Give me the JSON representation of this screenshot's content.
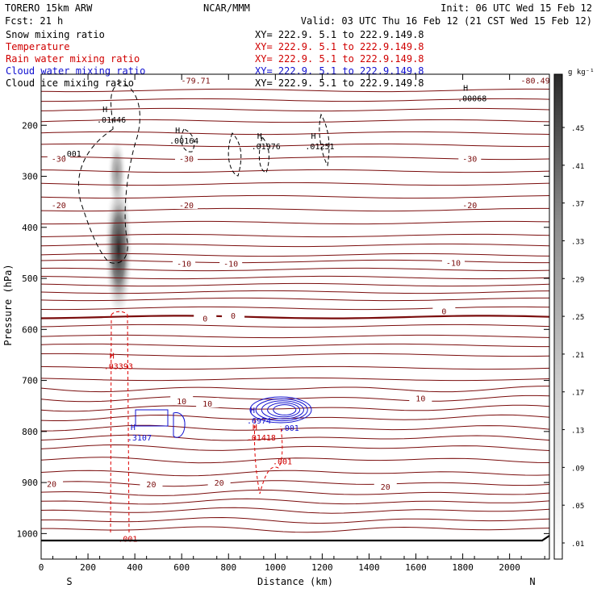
{
  "header": {
    "model": "TORERO  15km ARW",
    "org": "NCAR/MMM",
    "init": "Init: 06 UTC Wed 15 Feb 12",
    "fcst": "Fcst:   21 h",
    "valid": "Valid: 03 UTC Thu 16 Feb 12 (21 CST Wed 15 Feb 12)"
  },
  "fields": [
    {
      "name": "Snow mixing ratio",
      "xy": "XY= 222.9.  5.1 to 222.9.149.8",
      "color": "#000000"
    },
    {
      "name": "Temperature",
      "xy": "XY= 222.9.  5.1 to 222.9.149.8",
      "color": "#d00000"
    },
    {
      "name": "Rain water mixing ratio",
      "xy": "XY= 222.9.  5.1 to 222.9.149.8",
      "color": "#d00000"
    },
    {
      "name": "Cloud water mixing ratio",
      "xy": "XY= 222.9.  5.1 to 222.9.149.8",
      "color": "#1010d0"
    },
    {
      "name": "Cloud ice mixing ratio",
      "xy": "XY= 222.9.  5.1 to 222.9.149.8",
      "color": "#000000"
    }
  ],
  "colors": {
    "temperature": "#7a0c0c",
    "rain": "#e00000",
    "cloud_water": "#1010d0",
    "ice": "#000000"
  },
  "chart_data": {
    "type": "contour cross-section",
    "xlabel": "Distance (km)",
    "ylabel": "Pressure (hPa)",
    "xlim": [
      0,
      2170
    ],
    "ylim": [
      1050,
      100
    ],
    "x_ticks": [
      0,
      200,
      400,
      600,
      800,
      1000,
      1200,
      1400,
      1600,
      1800,
      2000
    ],
    "y_ticks": [
      200,
      300,
      400,
      500,
      600,
      700,
      800,
      900,
      1000
    ],
    "y_tick_labels": [
      "200",
      "300",
      "400",
      "500",
      "600",
      "700",
      "800",
      "900",
      "1000"
    ],
    "left_end": "S",
    "right_end": "N",
    "colorbar_unit": "g kg⁻¹",
    "colorbar_ticks": [
      ".01",
      ".05",
      ".09",
      ".13",
      ".17",
      ".21",
      ".25",
      ".29",
      ".33",
      ".37",
      ".41",
      ".45"
    ],
    "temperature_labels": [
      {
        "x": 660,
        "p": 112,
        "text": "-79.71"
      },
      {
        "x": 2110,
        "p": 112,
        "text": "-80.49"
      },
      {
        "x": 75,
        "p": 265,
        "text": "-30"
      },
      {
        "x": 620,
        "p": 265,
        "text": "-30"
      },
      {
        "x": 1830,
        "p": 265,
        "text": "-30"
      },
      {
        "x": 75,
        "p": 356,
        "text": "-20"
      },
      {
        "x": 620,
        "p": 356,
        "text": "-20"
      },
      {
        "x": 1830,
        "p": 356,
        "text": "-20"
      },
      {
        "x": 610,
        "p": 471,
        "text": "-10"
      },
      {
        "x": 810,
        "p": 471,
        "text": "-10"
      },
      {
        "x": 1760,
        "p": 469,
        "text": "-10"
      },
      {
        "x": 700,
        "p": 578,
        "text": "0"
      },
      {
        "x": 820,
        "p": 573,
        "text": "0"
      },
      {
        "x": 1720,
        "p": 564,
        "text": "0"
      },
      {
        "x": 600,
        "p": 740,
        "text": "10"
      },
      {
        "x": 710,
        "p": 745,
        "text": "10"
      },
      {
        "x": 1620,
        "p": 735,
        "text": "10"
      },
      {
        "x": 45,
        "p": 902,
        "text": "20"
      },
      {
        "x": 470,
        "p": 903,
        "text": "20"
      },
      {
        "x": 760,
        "p": 900,
        "text": "20"
      },
      {
        "x": 1470,
        "p": 908,
        "text": "20"
      }
    ],
    "highs": [
      {
        "x": 300,
        "p": 182,
        "value": ".01446",
        "color": "#000000"
      },
      {
        "x": 610,
        "p": 223,
        "value": ".00164",
        "color": "#000000"
      },
      {
        "x": 960,
        "p": 234,
        "value": ".01976",
        "color": "#000000"
      },
      {
        "x": 1190,
        "p": 234,
        "value": ".01251",
        "color": "#000000"
      },
      {
        "x": 1840,
        "p": 140,
        "value": ".00068",
        "color": "#000000"
      },
      {
        "x": 330,
        "p": 665,
        "value": ".03393",
        "color": "#d00000"
      },
      {
        "x": 420,
        "p": 805,
        "value": ".3107",
        "color": "#1010d0"
      },
      {
        "x": 930,
        "p": 772,
        "value": ".6974",
        "color": "#1010d0"
      },
      {
        "x": 940,
        "p": 805,
        "value": ".01418",
        "color": "#d00000"
      }
    ],
    "contour_labels": [
      {
        "x": 130,
        "p": 255,
        "text": ".001",
        "color": "#000000"
      },
      {
        "x": 1060,
        "p": 792,
        "text": ".001",
        "color": "#1010d0"
      },
      {
        "x": 1030,
        "p": 858,
        "text": ".001",
        "color": "#d00000"
      },
      {
        "x": 370,
        "p": 1010,
        "text": ".001",
        "color": "#d00000"
      }
    ],
    "snow_max_gkg": 0.45
  }
}
